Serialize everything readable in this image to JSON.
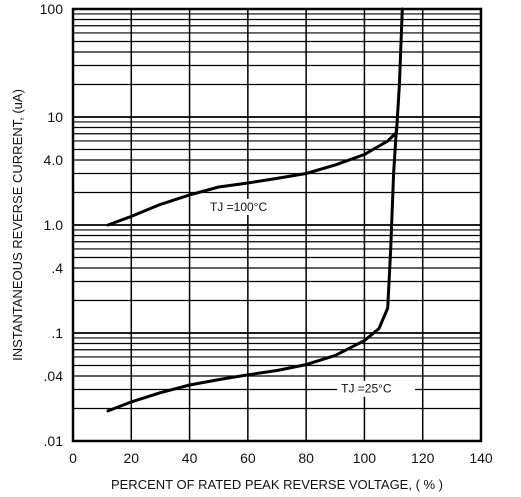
{
  "chart_data": {
    "type": "line",
    "title": "",
    "xlabel": "PERCENT OF RATED PEAK REVERSE VOLTAGE, ( % )",
    "ylabel": "INSTANTANEOUS REVERSE CURRENT, (uA)",
    "xlim": [
      0,
      140
    ],
    "ylim": [
      0.01,
      100
    ],
    "yscale": "log",
    "grid": true,
    "x_ticks": [
      0,
      20,
      40,
      60,
      80,
      100,
      120,
      140
    ],
    "x_tick_labels": [
      "0",
      "20",
      "40",
      "60",
      "80",
      "100",
      "120",
      "140"
    ],
    "y_ticks": [
      100,
      10,
      4,
      1,
      0.4,
      0.1,
      0.04,
      0.01
    ],
    "y_tick_labels": [
      "100",
      "10",
      "4.0",
      "1.0",
      ".4",
      ".1",
      ".04",
      ".01"
    ],
    "series": [
      {
        "label": "TJ =100°C",
        "label_x": 47,
        "label_y": 1.35,
        "points": [
          [
            12,
            1.0
          ],
          [
            20,
            1.2
          ],
          [
            30,
            1.55
          ],
          [
            40,
            1.9
          ],
          [
            50,
            2.25
          ],
          [
            60,
            2.45
          ],
          [
            70,
            2.7
          ],
          [
            80,
            3.0
          ],
          [
            90,
            3.6
          ],
          [
            100,
            4.5
          ],
          [
            108,
            6.0
          ],
          [
            111,
            7.2
          ],
          [
            112,
            20
          ],
          [
            113,
            100
          ]
        ]
      },
      {
        "label": "TJ =25°C",
        "label_x": 92,
        "label_y": 0.028,
        "points": [
          [
            12,
            0.019
          ],
          [
            20,
            0.023
          ],
          [
            30,
            0.028
          ],
          [
            40,
            0.033
          ],
          [
            50,
            0.037
          ],
          [
            60,
            0.041
          ],
          [
            70,
            0.045
          ],
          [
            80,
            0.051
          ],
          [
            90,
            0.062
          ],
          [
            100,
            0.085
          ],
          [
            105,
            0.11
          ],
          [
            108,
            0.17
          ],
          [
            109,
            0.6
          ],
          [
            110,
            3.0
          ],
          [
            111,
            8.0
          ]
        ]
      }
    ]
  }
}
